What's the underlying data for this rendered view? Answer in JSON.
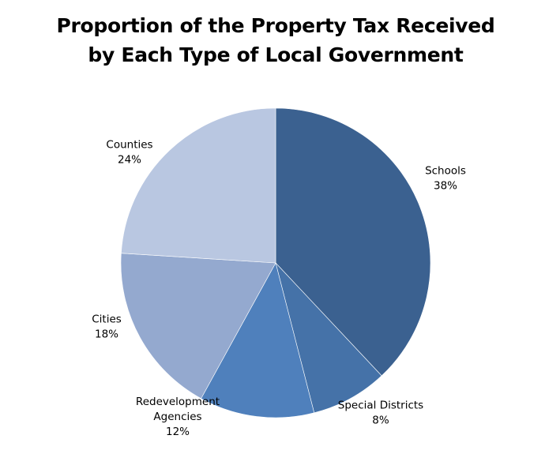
{
  "chart_data": {
    "type": "pie",
    "title": [
      "Proportion of the Property Tax Received",
      "by Each Type of Local Government"
    ],
    "slices": [
      {
        "label": "Schools",
        "value": 38,
        "value_label": "38%",
        "color": "#3B6190"
      },
      {
        "label": "Special Districts",
        "value": 8,
        "value_label": "8%",
        "color": "#4572A8"
      },
      {
        "label": "Redevelopment Agencies",
        "label_lines": [
          "Redevelopment",
          "Agencies"
        ],
        "value": 12,
        "value_label": "12%",
        "color": "#4F80BC"
      },
      {
        "label": "Cities",
        "value": 18,
        "value_label": "18%",
        "color": "#94A9CF"
      },
      {
        "label": "Counties",
        "value": 24,
        "value_label": "24%",
        "color": "#B9C7E1"
      }
    ],
    "start_angle": "12 o'clock",
    "direction": "clockwise",
    "legend": "none"
  }
}
